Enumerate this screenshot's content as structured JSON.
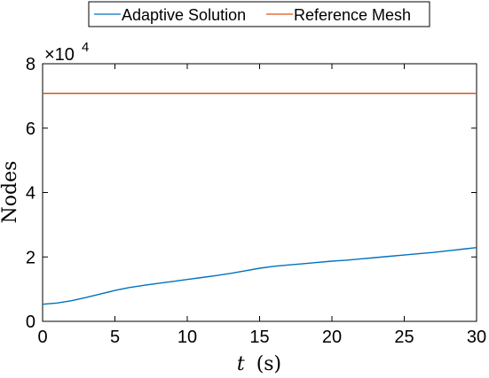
{
  "chart_data": {
    "type": "line",
    "xlabel_var": "t",
    "xlabel_unit": "(s)",
    "ylabel": "Nodes",
    "y_multiplier_base": "×10",
    "y_multiplier_exp": "4",
    "xlim": [
      0,
      30
    ],
    "ylim": [
      0,
      8
    ],
    "x_ticks": [
      0,
      5,
      10,
      15,
      20,
      25,
      30
    ],
    "y_ticks": [
      0,
      2,
      4,
      6,
      8
    ],
    "grid": false,
    "legend_position": "top",
    "series": [
      {
        "name": "Adaptive Solution",
        "color": "#0072BD",
        "x": [
          0,
          1,
          2,
          3,
          4,
          5,
          6,
          7,
          8,
          9,
          10,
          11,
          12,
          13,
          14,
          15,
          16,
          17,
          18,
          19,
          20,
          21,
          22,
          23,
          24,
          25,
          26,
          27,
          28,
          29,
          30
        ],
        "y": [
          0.53,
          0.57,
          0.64,
          0.74,
          0.85,
          0.96,
          1.05,
          1.12,
          1.18,
          1.24,
          1.3,
          1.36,
          1.42,
          1.49,
          1.57,
          1.65,
          1.71,
          1.75,
          1.79,
          1.83,
          1.87,
          1.9,
          1.94,
          1.98,
          2.02,
          2.06,
          2.1,
          2.14,
          2.19,
          2.24,
          2.29
        ]
      },
      {
        "name": "Reference Mesh",
        "color": "#D95319",
        "x": [
          0,
          30
        ],
        "y": [
          7.08,
          7.08
        ]
      }
    ]
  }
}
